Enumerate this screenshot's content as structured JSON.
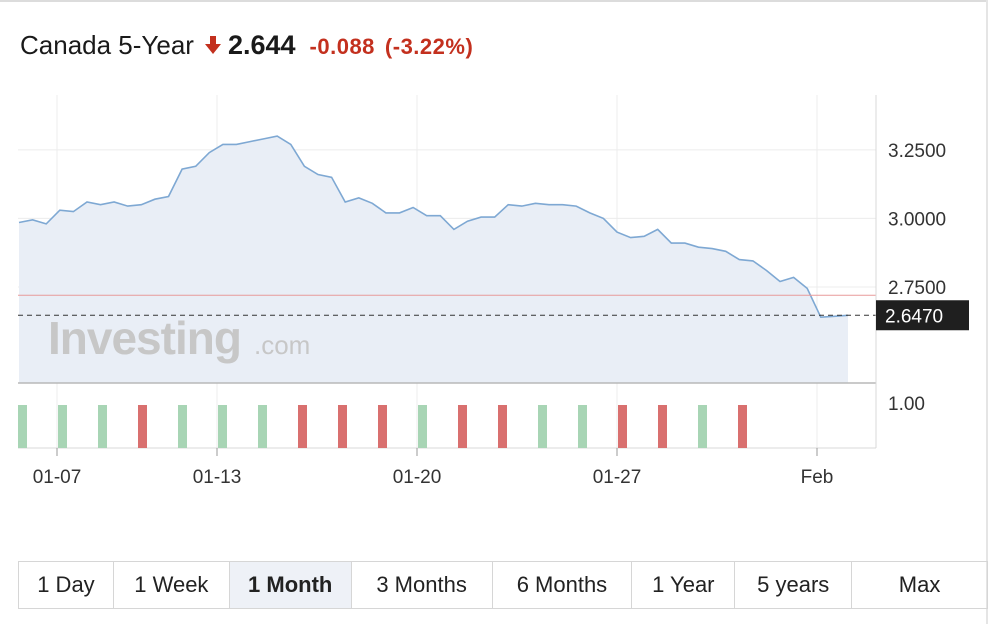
{
  "header": {
    "title": "Canada 5-Year",
    "price": "2.644",
    "change": "-0.088",
    "change_pct": "(-3.22%)",
    "direction_icon": "arrow-down-icon",
    "down_color": "#c3301e"
  },
  "watermark": {
    "brand": "Investing",
    "suffix": ".com"
  },
  "chart_data": {
    "type": "area",
    "x_tick_labels": [
      "01-07",
      "01-13",
      "01-20",
      "01-27",
      "Feb"
    ],
    "y_tick_labels": [
      "3.2500",
      "3.0000",
      "2.7500"
    ],
    "ylim": [
      2.4,
      3.45
    ],
    "grid": true,
    "legend": "none",
    "current_value_label": "2.6470",
    "reference_line": 2.72,
    "series": [
      {
        "values": [
          2.985,
          2.995,
          2.98,
          3.03,
          3.025,
          3.06,
          3.05,
          3.06,
          3.045,
          3.05,
          3.07,
          3.08,
          3.18,
          3.19,
          3.24,
          3.27,
          3.27,
          3.28,
          3.29,
          3.3,
          3.27,
          3.19,
          3.16,
          3.15,
          3.06,
          3.075,
          3.055,
          3.02,
          3.02,
          3.04,
          3.01,
          3.01,
          2.96,
          2.99,
          3.005,
          3.005,
          3.05,
          3.045,
          3.055,
          3.05,
          3.05,
          3.045,
          3.02,
          3.0,
          2.95,
          2.93,
          2.935,
          2.96,
          2.91,
          2.91,
          2.895,
          2.89,
          2.88,
          2.85,
          2.845,
          2.81,
          2.77,
          2.785,
          2.745,
          2.64,
          2.643,
          2.647
        ]
      }
    ],
    "volume_panel": {
      "y_tick_label": "1.00",
      "bars": [
        1,
        1,
        1,
        0,
        1,
        1,
        1,
        0,
        0,
        0,
        1,
        0,
        0,
        1,
        1,
        0,
        0,
        1,
        0
      ],
      "up_color": "#a8d5b5",
      "down_color": "#d9706f"
    }
  },
  "range_buttons": [
    {
      "label": "1 Day",
      "active": false
    },
    {
      "label": "1 Week",
      "active": false
    },
    {
      "label": "1 Month",
      "active": true
    },
    {
      "label": "3 Months",
      "active": false
    },
    {
      "label": "6 Months",
      "active": false
    },
    {
      "label": "1 Year",
      "active": false
    },
    {
      "label": "5 years",
      "active": false
    },
    {
      "label": "Max",
      "active": false
    }
  ]
}
